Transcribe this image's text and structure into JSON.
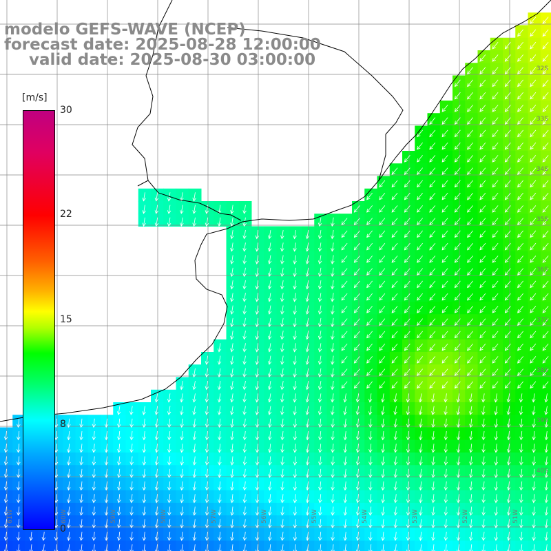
{
  "title": {
    "model": "modelo GEFS-WAVE (NCEP)",
    "forecast": "forecast date: 2025-08-28 12:00:00",
    "valid": "valid date: 2025-08-30 03:00:00"
  },
  "colorbar": {
    "unit": "[m/s]",
    "ticks": [
      "30",
      "22",
      "15",
      "8",
      "0"
    ],
    "range": [
      0,
      30
    ]
  },
  "lat_labels": [
    "32S",
    "33S",
    "34S",
    "35S",
    "36S",
    "37S",
    "38S",
    "39S",
    "40S"
  ],
  "lon_labels": [
    "61W",
    "60W",
    "59W",
    "58W",
    "57W",
    "56W",
    "55W",
    "54W",
    "53W",
    "52W",
    "51W"
  ],
  "colors": {
    "land": "#ffffff",
    "grid": "#888888",
    "arrow": "#ffffff",
    "title": "#8a8a8a"
  }
}
